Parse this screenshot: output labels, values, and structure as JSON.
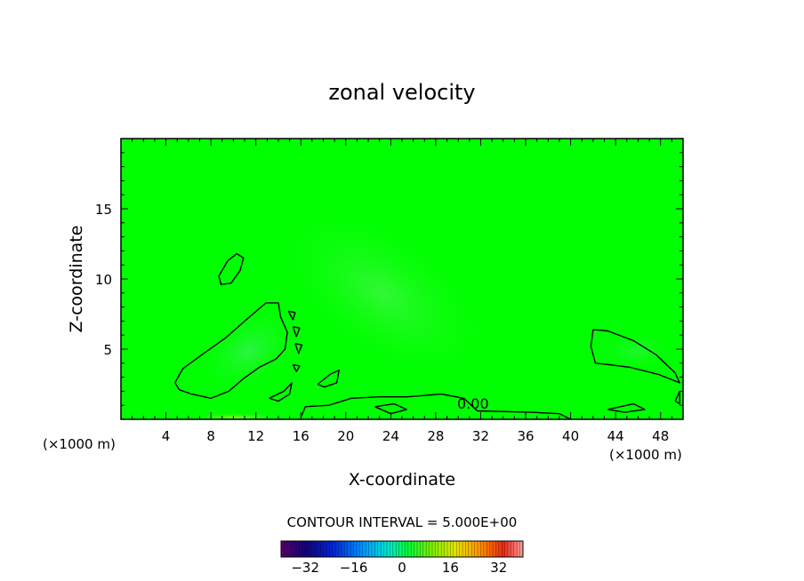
{
  "chart_data": {
    "type": "heatmap",
    "title": "zonal velocity",
    "xlabel": "X-coordinate",
    "ylabel": "Z-coordinate",
    "x_unit_left": "(×1000 m)",
    "x_unit_right": "(×1000 m)",
    "xlim": [
      0,
      50
    ],
    "ylim": [
      0,
      20
    ],
    "x_ticks": [
      4,
      8,
      12,
      16,
      20,
      24,
      28,
      32,
      36,
      40,
      44,
      48
    ],
    "y_ticks": [
      5,
      10,
      15
    ],
    "contour_label": "0.00",
    "contour_interval_text": "CONTOUR INTERVAL = 5.000E+00",
    "colorbar": {
      "min": -40,
      "max": 40,
      "ticks": [
        -32,
        -16,
        0,
        16,
        32
      ],
      "tick_labels": [
        "−32",
        "−16",
        "0",
        "16",
        "32"
      ]
    },
    "field_background_color": "#00ff00",
    "zero_contours": [
      {
        "name": "upper-small-loop",
        "points": [
          [
            8.7,
            10.2
          ],
          [
            9.5,
            11.3
          ],
          [
            10.3,
            11.8
          ],
          [
            10.9,
            11.5
          ],
          [
            10.6,
            10.6
          ],
          [
            9.8,
            9.7
          ],
          [
            8.9,
            9.6
          ],
          [
            8.7,
            10.2
          ]
        ]
      },
      {
        "name": "main-left-loop",
        "points": [
          [
            4.8,
            2.6
          ],
          [
            5.5,
            3.6
          ],
          [
            7.2,
            4.6
          ],
          [
            9.3,
            5.8
          ],
          [
            11.3,
            7.2
          ],
          [
            12.9,
            8.3
          ],
          [
            14.0,
            8.3
          ],
          [
            14.2,
            7.3
          ],
          [
            14.8,
            6.2
          ],
          [
            14.6,
            5.0
          ],
          [
            13.8,
            4.3
          ],
          [
            12.3,
            3.7
          ],
          [
            10.9,
            2.9
          ],
          [
            9.6,
            2.0
          ],
          [
            8.0,
            1.5
          ],
          [
            6.3,
            1.8
          ],
          [
            5.2,
            2.1
          ],
          [
            4.8,
            2.6
          ]
        ]
      },
      {
        "name": "mid-small-loop",
        "points": [
          [
            17.5,
            2.5
          ],
          [
            18.6,
            3.2
          ],
          [
            19.4,
            3.5
          ],
          [
            19.2,
            2.6
          ],
          [
            18.1,
            2.3
          ],
          [
            17.5,
            2.5
          ]
        ]
      },
      {
        "name": "lower-small-loop",
        "points": [
          [
            13.2,
            1.5
          ],
          [
            14.5,
            2.0
          ],
          [
            15.2,
            2.6
          ],
          [
            15.0,
            1.8
          ],
          [
            14.0,
            1.3
          ],
          [
            13.2,
            1.5
          ]
        ]
      },
      {
        "name": "low-layer-band",
        "points": [
          [
            16.0,
            0.1
          ],
          [
            16.4,
            0.9
          ],
          [
            18.5,
            1.0
          ],
          [
            20.5,
            1.5
          ],
          [
            23.0,
            1.6
          ],
          [
            25.5,
            1.6
          ],
          [
            28.5,
            1.8
          ],
          [
            30.5,
            1.5
          ],
          [
            31.7,
            0.6
          ],
          [
            36.5,
            0.5
          ],
          [
            39.0,
            0.4
          ],
          [
            40.0,
            0.0
          ]
        ]
      },
      {
        "name": "small-blob-center",
        "points": [
          [
            22.6,
            0.9
          ],
          [
            24.3,
            1.1
          ],
          [
            25.4,
            0.7
          ],
          [
            24.0,
            0.4
          ],
          [
            22.6,
            0.9
          ]
        ]
      },
      {
        "name": "right-loop",
        "points": [
          [
            42.0,
            6.4
          ],
          [
            43.3,
            6.3
          ],
          [
            45.6,
            5.6
          ],
          [
            47.6,
            4.6
          ],
          [
            49.3,
            3.3
          ],
          [
            49.7,
            2.6
          ],
          [
            47.8,
            3.2
          ],
          [
            45.3,
            3.7
          ],
          [
            43.4,
            3.9
          ],
          [
            42.2,
            4.0
          ],
          [
            41.8,
            5.2
          ],
          [
            42.0,
            6.4
          ]
        ]
      },
      {
        "name": "bottom-right-blob",
        "points": [
          [
            43.3,
            0.7
          ],
          [
            45.6,
            1.1
          ],
          [
            46.6,
            0.7
          ],
          [
            44.8,
            0.5
          ],
          [
            43.3,
            0.7
          ]
        ]
      },
      {
        "name": "edge-right-blob",
        "points": [
          [
            49.3,
            1.3
          ],
          [
            49.7,
            2.0
          ],
          [
            49.7,
            1.1
          ],
          [
            49.3,
            1.3
          ]
        ]
      },
      {
        "name": "chain-1",
        "points": [
          [
            14.9,
            7.7
          ],
          [
            15.5,
            7.6
          ],
          [
            15.3,
            7.1
          ],
          [
            14.9,
            7.7
          ]
        ]
      },
      {
        "name": "chain-2",
        "points": [
          [
            15.3,
            6.6
          ],
          [
            15.9,
            6.5
          ],
          [
            15.6,
            5.9
          ],
          [
            15.3,
            6.6
          ]
        ]
      },
      {
        "name": "chain-3",
        "points": [
          [
            15.5,
            5.4
          ],
          [
            16.1,
            5.3
          ],
          [
            15.8,
            4.7
          ],
          [
            15.5,
            5.4
          ]
        ]
      },
      {
        "name": "chain-4",
        "points": [
          [
            15.3,
            3.9
          ],
          [
            15.9,
            3.8
          ],
          [
            15.6,
            3.4
          ],
          [
            15.3,
            3.9
          ]
        ]
      }
    ]
  }
}
